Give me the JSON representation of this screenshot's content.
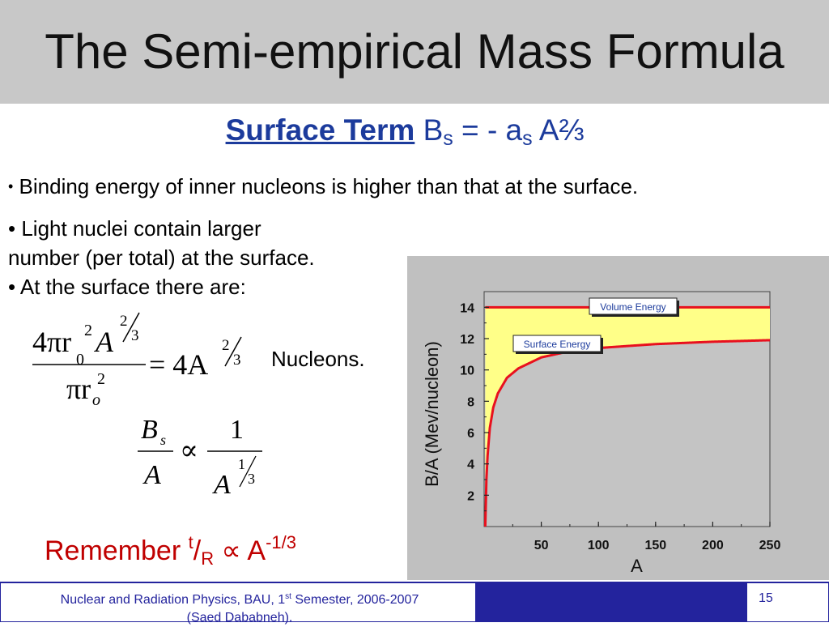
{
  "slide": {
    "title": "The Semi-empirical Mass Formula",
    "subtitle_term": "Surface Term",
    "subtitle_B": "B",
    "subtitle_s": "s",
    "subtitle_mid": " = - a",
    "subtitle_s2": "s",
    "subtitle_end": " A⅔",
    "bullet1_dot": "•",
    "bullet1_text": " Binding energy of inner nucleons is higher than that at the surface.",
    "bullet2_line1": "• Light nuclei contain larger",
    "bullet2_line2": "number (per total) at the surface.",
    "bullet3": "• At the surface there are:",
    "nucleons": "Nucleons.",
    "remember_word": "Remember ",
    "remember_t": "t",
    "remember_slash": "/",
    "remember_R": "R",
    "remember_prop": " ∝ ",
    "remember_A": "A",
    "remember_exp": "-1/3"
  },
  "eq1": {
    "num_4pi": "4πr",
    "num_r0_sub": "0",
    "num_r0_sup": "2",
    "num_A": "A",
    "frac_2": "2",
    "frac_3": "3",
    "den": "πr",
    "den_sub": "o",
    "den_sup": "2",
    "equals": "= 4A",
    "rhs_2": "2",
    "rhs_3": "3"
  },
  "eq2": {
    "B": "B",
    "s": "s",
    "A": "A",
    "prop": "∝",
    "one": "1",
    "rhsA": "A",
    "e1": "1",
    "e3": "3"
  },
  "chart_data": {
    "type": "area",
    "xlabel": "A",
    "ylabel": "B/A (Mev/nucleon)",
    "xlim": [
      0,
      250
    ],
    "ylim": [
      0,
      15
    ],
    "xticks": [
      50,
      100,
      150,
      200,
      250
    ],
    "yticks": [
      2,
      4,
      6,
      8,
      10,
      12,
      14
    ],
    "series": [
      {
        "name": "Volume Energy",
        "x": [
          1,
          250
        ],
        "y": [
          14,
          14
        ]
      },
      {
        "name": "Surface Energy",
        "x": [
          1,
          2,
          3,
          5,
          8,
          12,
          20,
          30,
          50,
          75,
          100,
          150,
          200,
          250
        ],
        "y": [
          0,
          3.0,
          4.5,
          6.3,
          7.6,
          8.5,
          9.5,
          10.1,
          10.8,
          11.2,
          11.4,
          11.65,
          11.8,
          11.9
        ]
      }
    ],
    "fill_between": "between Volume Energy and Surface Energy",
    "colors": {
      "line": "#e8101e",
      "fill": "#ffff88",
      "plot_bg": "#c4c4c4",
      "panel_bg": "#c0c0c0"
    }
  },
  "footer": {
    "left_line1a": "Nuclear and Radiation Physics, BAU, 1",
    "left_sup": "st",
    "left_line1b": " Semester, 2006-2007",
    "left_line2": "(Saed Dababneh).",
    "page": "15"
  }
}
